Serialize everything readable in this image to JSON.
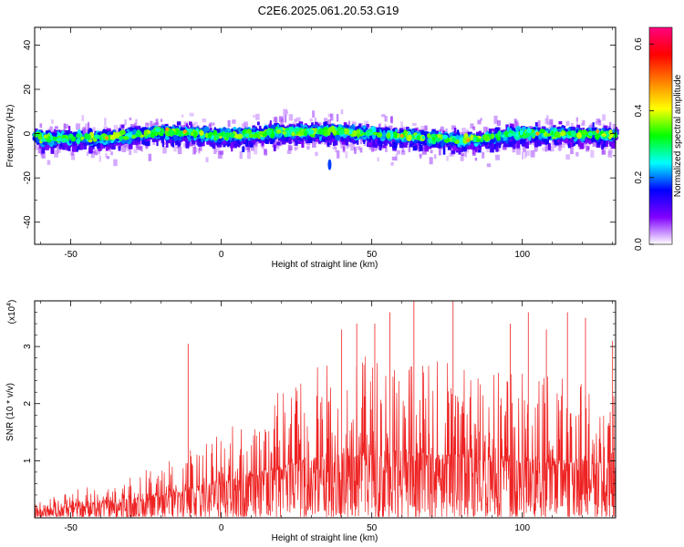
{
  "figure_title": "C2E6.2025.061.20.53.G19",
  "colors": {
    "snr_line": "#ee2222",
    "axis": "#000000",
    "background": "#ffffff"
  },
  "chart_data": [
    {
      "type": "heatmap",
      "xlabel": "Height of straight line (km)",
      "ylabel": "Frequency (Hz)",
      "xlim": [
        -62,
        131
      ],
      "ylim": [
        -50,
        48
      ],
      "xticks": [
        -50,
        0,
        50,
        100
      ],
      "xtick_labels": [
        "-50",
        "0",
        "50",
        "100"
      ],
      "yticks": [
        -40,
        -20,
        0,
        20,
        40
      ],
      "ytick_labels": [
        "-40",
        "-20",
        "0",
        "20",
        "40"
      ],
      "colorbar": {
        "label": "Normalized spectral amplitude",
        "range": [
          0,
          0.65
        ],
        "ticks": [
          0,
          0.2,
          0.4,
          0.6
        ],
        "tick_labels": [
          "0.0",
          "0.2",
          "0.4",
          "0.6"
        ],
        "colormap": [
          "#ffffff",
          "#8000ff",
          "#0000ff",
          "#00ffff",
          "#00ff00",
          "#ffff00",
          "#ff8000",
          "#ff0000",
          "#ff0080"
        ]
      },
      "grid": false,
      "ridge": [
        {
          "x": -60,
          "y": -2
        },
        {
          "x": -40,
          "y": -2
        },
        {
          "x": -20,
          "y": 1
        },
        {
          "x": 0,
          "y": -1
        },
        {
          "x": 20,
          "y": 1
        },
        {
          "x": 40,
          "y": 1
        },
        {
          "x": 60,
          "y": -1
        },
        {
          "x": 80,
          "y": -3
        },
        {
          "x": 100,
          "y": 0
        },
        {
          "x": 120,
          "y": 0
        },
        {
          "x": 131,
          "y": -1
        }
      ]
    },
    {
      "type": "line",
      "xlabel": "Height of straight line (km)",
      "ylabel": "SNR (10 * v/v)",
      "y_multiplier": "(x10",
      "y_exponent": "4",
      "y_multiplier_close": ")",
      "xlim": [
        -62,
        131
      ],
      "ylim": [
        0,
        3.8
      ],
      "xticks": [
        -50,
        0,
        50,
        100
      ],
      "xtick_labels": [
        "-50",
        "0",
        "50",
        "100"
      ],
      "yticks": [
        1,
        2,
        3
      ],
      "ytick_labels": [
        "1",
        "2",
        "3"
      ],
      "grid": false,
      "series": [
        {
          "envelope": [
            {
              "x": -62,
              "y": 0.3
            },
            {
              "x": -50,
              "y": 0.5
            },
            {
              "x": -35,
              "y": 0.7
            },
            {
              "x": -20,
              "y": 1.0
            },
            {
              "x": -10,
              "y": 1.3
            },
            {
              "x": 0,
              "y": 1.6
            },
            {
              "x": 10,
              "y": 2.0
            },
            {
              "x": 20,
              "y": 2.4
            },
            {
              "x": 30,
              "y": 2.8
            },
            {
              "x": 40,
              "y": 3.0
            },
            {
              "x": 50,
              "y": 3.0
            },
            {
              "x": 60,
              "y": 3.2
            },
            {
              "x": 70,
              "y": 2.9
            },
            {
              "x": 80,
              "y": 2.9
            },
            {
              "x": 90,
              "y": 2.8
            },
            {
              "x": 100,
              "y": 2.7
            },
            {
              "x": 110,
              "y": 2.7
            },
            {
              "x": 120,
              "y": 2.7
            },
            {
              "x": 131,
              "y": 2.5
            }
          ],
          "peaks": [
            {
              "x": -11,
              "y": 3.05
            },
            {
              "x": 40,
              "y": 3.3
            },
            {
              "x": 45,
              "y": 3.4
            },
            {
              "x": 51,
              "y": 3.4
            },
            {
              "x": 56,
              "y": 3.6
            },
            {
              "x": 64,
              "y": 3.85
            },
            {
              "x": 77,
              "y": 3.85
            },
            {
              "x": 96,
              "y": 3.4
            },
            {
              "x": 102,
              "y": 3.6
            },
            {
              "x": 108,
              "y": 3.3
            },
            {
              "x": 115,
              "y": 3.6
            },
            {
              "x": 121,
              "y": 3.5
            },
            {
              "x": 130,
              "y": 3.1
            }
          ]
        }
      ]
    }
  ]
}
